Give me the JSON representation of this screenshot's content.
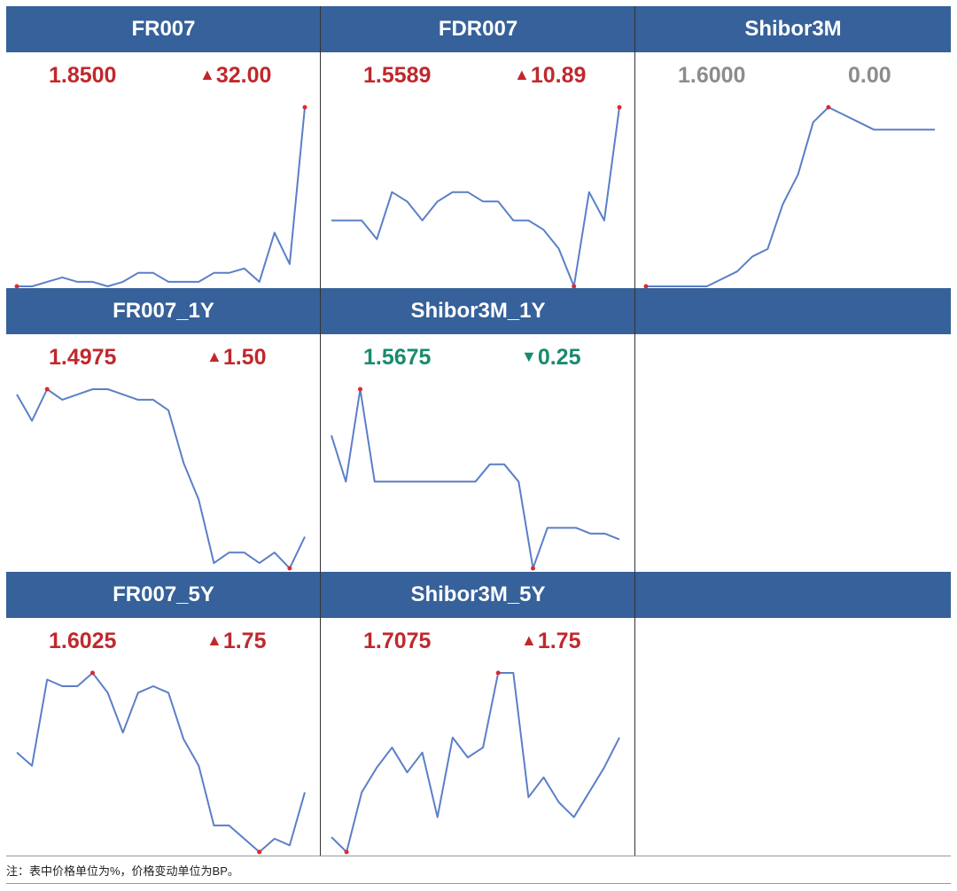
{
  "colors": {
    "header_bg": "#36619a",
    "line": "#5b7fc8",
    "marker": "#e0282d",
    "up": "#c0282d",
    "down": "#1a8a6e",
    "flat": "#8c8c8c"
  },
  "note": "注：表中价格单位为%，价格变动单位为BP。",
  "chart_data": [
    {
      "type": "line",
      "title": "FR007",
      "value": "1.8500",
      "change": "32.00",
      "direction": "up",
      "marker_triangle": "▲",
      "y": [
        0,
        0,
        1,
        2,
        1,
        1,
        0,
        1,
        3,
        3,
        1,
        1,
        1,
        3,
        3,
        4,
        1,
        12,
        5,
        40
      ],
      "markers": [
        0,
        19
      ]
    },
    {
      "type": "line",
      "title": "FDR007",
      "value": "1.5589",
      "change": "10.89",
      "direction": "up",
      "marker_triangle": "▲",
      "y": [
        15,
        15,
        15,
        11,
        21,
        19,
        15,
        19,
        21,
        21,
        19,
        19,
        15,
        15,
        13,
        9,
        1,
        21,
        15,
        39
      ],
      "markers": [
        16,
        19
      ]
    },
    {
      "type": "line",
      "title": "Shibor3M",
      "value": "1.6000",
      "change": "0.00",
      "direction": "flat",
      "marker_triangle": "",
      "y": [
        0,
        0,
        0,
        0,
        0,
        1,
        2,
        4,
        5,
        11,
        15,
        22,
        24,
        23,
        22,
        21,
        21,
        21,
        21,
        21
      ],
      "markers": [
        0,
        12
      ]
    },
    {
      "type": "line",
      "title": "FR007_1Y",
      "value": "1.4975",
      "change": "1.50",
      "direction": "up",
      "marker_triangle": "▲",
      "y": [
        31,
        26,
        32,
        30,
        31,
        32,
        32,
        31,
        30,
        30,
        28,
        18,
        11,
        -1,
        1,
        1,
        -1,
        1,
        -2,
        4
      ],
      "markers": [
        2,
        18
      ]
    },
    {
      "type": "line",
      "title": "Shibor3M_1Y",
      "value": "1.5675",
      "change": "0.25",
      "direction": "down",
      "marker_triangle": "▼",
      "y": [
        22,
        14,
        30,
        14,
        14,
        14,
        14,
        14,
        14,
        14,
        14,
        17,
        17,
        14,
        -1,
        6,
        6,
        6,
        5,
        5,
        4
      ],
      "markers": [
        2,
        14
      ]
    },
    {
      "type": "line",
      "title": "FR007_5Y",
      "value": "1.6025",
      "change": "1.75",
      "direction": "up",
      "marker_triangle": "▲",
      "y": [
        16,
        14,
        27,
        26,
        26,
        28,
        25,
        19,
        25,
        26,
        25,
        18,
        14,
        5,
        5,
        3,
        1,
        3,
        2,
        10
      ],
      "markers": [
        5,
        16
      ]
    },
    {
      "type": "line",
      "title": "Shibor3M_5Y",
      "value": "1.7075",
      "change": "1.75",
      "direction": "up",
      "marker_triangle": "▲",
      "y": [
        4,
        1,
        13,
        18,
        22,
        17,
        21,
        8,
        24,
        20,
        22,
        37,
        37,
        12,
        16,
        11,
        8,
        13,
        18,
        24
      ],
      "markers": [
        1,
        11
      ]
    }
  ]
}
